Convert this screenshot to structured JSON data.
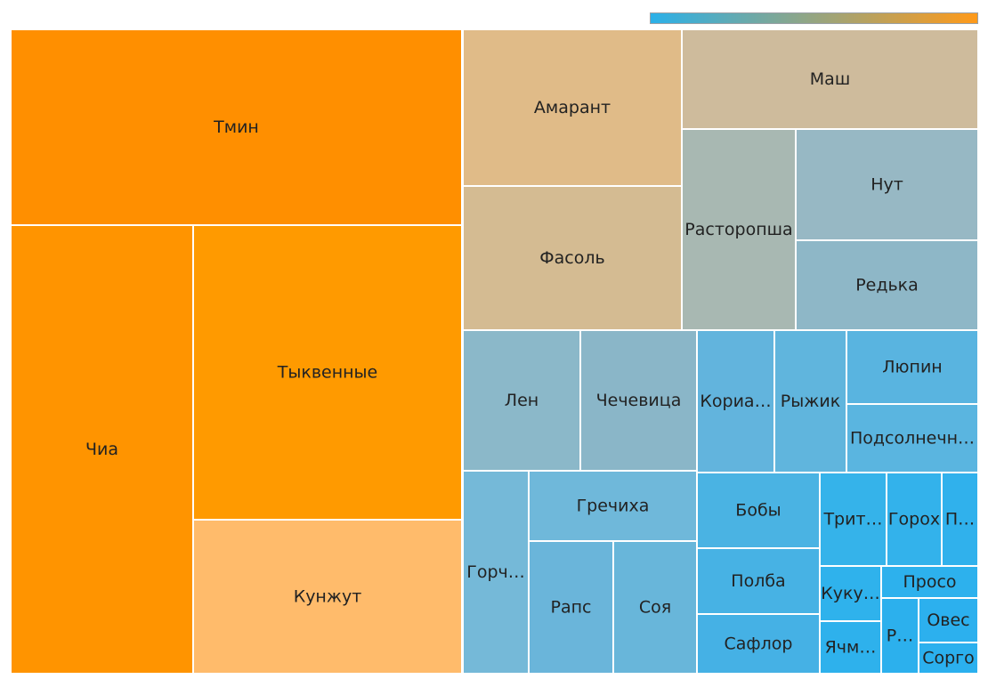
{
  "chart_data": {
    "type": "treemap",
    "color_scale": {
      "low": "#2bb0e8",
      "high": "#ff9a1a"
    },
    "items": [
      {
        "label": "Тмин",
        "value": 111,
        "color": "#ff8f00"
      },
      {
        "label": "Чиа",
        "value": 104,
        "color": "#ff9400"
      },
      {
        "label": "Тыквенные",
        "value": 99,
        "color": "#ff9a00"
      },
      {
        "label": "Кунжут",
        "value": 51,
        "color": "#ffbb6b"
      },
      {
        "label": "Амарант",
        "value": 43,
        "color": "#e0bb88"
      },
      {
        "label": "Фасоль",
        "value": 42,
        "color": "#d4bb92"
      },
      {
        "label": "Маш",
        "value": 34,
        "color": "#cebb9c"
      },
      {
        "label": "Расторопша",
        "value": 28,
        "color": "#a8b8b2"
      },
      {
        "label": "Нут",
        "value": 24,
        "color": "#97b8c4"
      },
      {
        "label": "Редька",
        "value": 19,
        "color": "#8eb7c7"
      },
      {
        "label": "Лен",
        "value": 21,
        "color": "#8bb8c9"
      },
      {
        "label": "Чечевица",
        "value": 20,
        "color": "#8ab6c8"
      },
      {
        "label": "Кориа…",
        "value": 12,
        "color": "#62b4dd"
      },
      {
        "label": "Рыжик",
        "value": 10,
        "color": "#60b5dd"
      },
      {
        "label": "Люпин",
        "value": 11,
        "color": "#59b4e0"
      },
      {
        "label": "Подсолнечн…",
        "value": 11,
        "color": "#5ab5e0"
      },
      {
        "label": "Горч…",
        "value": 12,
        "color": "#75b9d8"
      },
      {
        "label": "Гречиха",
        "value": 14,
        "color": "#6fb8da"
      },
      {
        "label": "Рапс",
        "value": 12,
        "color": "#6ab5da"
      },
      {
        "label": "Соя",
        "value": 11,
        "color": "#68b6da"
      },
      {
        "label": "Бобы",
        "value": 9,
        "color": "#4ab3e3"
      },
      {
        "label": "Полба",
        "value": 8,
        "color": "#47b2e4"
      },
      {
        "label": "Сафлор",
        "value": 7,
        "color": "#45b1e5"
      },
      {
        "label": "Трит…",
        "value": 5,
        "color": "#35b3ea"
      },
      {
        "label": "Горох",
        "value": 4,
        "color": "#33b2eb"
      },
      {
        "label": "П…",
        "value": 3,
        "color": "#30b1ec"
      },
      {
        "label": "Куку…",
        "value": 2,
        "color": "#2fb2ec"
      },
      {
        "label": "Ячм…",
        "value": 2,
        "color": "#2eb1ec"
      },
      {
        "label": "Просо",
        "value": 2,
        "color": "#2db1ed"
      },
      {
        "label": "Р…",
        "value": 2,
        "color": "#2cb0ed"
      },
      {
        "label": "Овес",
        "value": 1,
        "color": "#2cb0ee"
      },
      {
        "label": "Сорго",
        "value": 1,
        "color": "#2bb0ee"
      }
    ]
  }
}
